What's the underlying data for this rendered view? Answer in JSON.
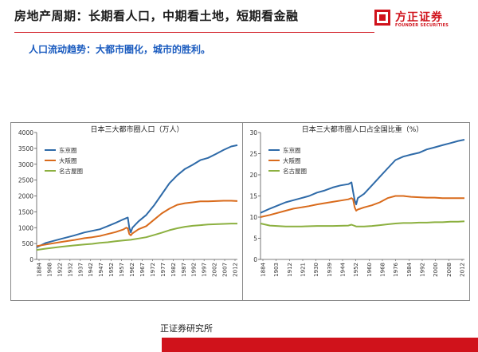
{
  "header": {
    "title": "房地产周期：长期看人口，中期看土地，短期看金融",
    "logo_cn": "方正证券",
    "logo_en": "FOUNDER SECURITIES"
  },
  "subtitle": "人口流动趋势：大都市圈化，城市的胜利。",
  "footer": {
    "text": "正证券研究所"
  },
  "colors": {
    "accent": "#d0121b",
    "subtitle": "#1a5bbf",
    "tokyo": "#2e6aa8",
    "osaka": "#d96b1c",
    "nagoya": "#8cb040"
  },
  "chart_data": [
    {
      "type": "line",
      "title": "日本三大都市圈人口（万人）",
      "xlim": [
        1884,
        2014
      ],
      "ylim": [
        0,
        4000
      ],
      "yticks": [
        0,
        500,
        1000,
        1500,
        2000,
        2500,
        3000,
        3500,
        4000
      ],
      "xtick_labels": [
        "1884",
        "1908",
        "1922",
        "1932",
        "1937",
        "1942",
        "1947",
        "1952",
        "1957",
        "1962",
        "1967",
        "1972",
        "1977",
        "1982",
        "1987",
        "1992",
        "1997",
        "2002",
        "2007",
        "2012"
      ],
      "legend_position": "top-left",
      "grid": false,
      "series": [
        {
          "name": "东京圈",
          "color": "#2e6aa8",
          "x": [
            1884,
            1890,
            1900,
            1908,
            1915,
            1920,
            1925,
            1930,
            1935,
            1940,
            1942,
            1943,
            1944,
            1945,
            1946,
            1950,
            1955,
            1960,
            1965,
            1970,
            1975,
            1980,
            1985,
            1990,
            1995,
            2000,
            2005,
            2010,
            2014
          ],
          "y": [
            380,
            520,
            650,
            750,
            850,
            900,
            950,
            1050,
            1150,
            1260,
            1300,
            1320,
            1000,
            850,
            1000,
            1200,
            1400,
            1700,
            2050,
            2400,
            2650,
            2850,
            2980,
            3130,
            3200,
            3320,
            3450,
            3560,
            3600
          ]
        },
        {
          "name": "大阪圈",
          "color": "#d96b1c",
          "x": [
            1884,
            1890,
            1900,
            1908,
            1915,
            1920,
            1925,
            1930,
            1935,
            1940,
            1942,
            1943,
            1944,
            1945,
            1946,
            1950,
            1955,
            1960,
            1965,
            1970,
            1975,
            1980,
            1985,
            1990,
            1995,
            2000,
            2005,
            2010,
            2014
          ],
          "y": [
            420,
            470,
            550,
            610,
            670,
            700,
            740,
            800,
            860,
            940,
            1000,
            980,
            800,
            760,
            820,
            950,
            1050,
            1250,
            1450,
            1600,
            1720,
            1770,
            1800,
            1830,
            1830,
            1840,
            1850,
            1850,
            1840
          ]
        },
        {
          "name": "名古屋圈",
          "color": "#8cb040",
          "x": [
            1884,
            1890,
            1900,
            1908,
            1915,
            1920,
            1925,
            1930,
            1935,
            1940,
            1945,
            1950,
            1955,
            1960,
            1965,
            1970,
            1975,
            1980,
            1985,
            1990,
            1995,
            2000,
            2005,
            2010,
            2014
          ],
          "y": [
            300,
            340,
            400,
            440,
            470,
            490,
            520,
            540,
            570,
            600,
            620,
            660,
            700,
            770,
            840,
            920,
            980,
            1030,
            1060,
            1080,
            1100,
            1110,
            1120,
            1130,
            1130
          ]
        }
      ]
    },
    {
      "type": "line",
      "title": "日本三大都市圈人口占全国比重（%）",
      "xlim": [
        1884,
        2014
      ],
      "ylim": [
        0,
        30
      ],
      "yticks": [
        0,
        5,
        10,
        15,
        20,
        25,
        30
      ],
      "xtick_labels": [
        "1884",
        "1903",
        "1912",
        "1921",
        "1930",
        "1939",
        "1944",
        "1952",
        "1960",
        "1968",
        "1976",
        "1984",
        "1992",
        "2000",
        "2008",
        "2012"
      ],
      "legend_position": "top-left",
      "grid": false,
      "series": [
        {
          "name": "东京圈",
          "color": "#2e6aa8",
          "x": [
            1884,
            1890,
            1900,
            1905,
            1910,
            1915,
            1920,
            1925,
            1930,
            1935,
            1940,
            1942,
            1943,
            1944,
            1945,
            1946,
            1950,
            1955,
            1960,
            1965,
            1970,
            1975,
            1980,
            1985,
            1990,
            1995,
            2000,
            2005,
            2010,
            2014
          ],
          "y": [
            11,
            12,
            13.5,
            14,
            14.5,
            15,
            15.8,
            16.3,
            17,
            17.5,
            17.8,
            18.2,
            16,
            14,
            13,
            14.5,
            15.5,
            17.5,
            19.5,
            21.5,
            23.5,
            24.3,
            24.8,
            25.2,
            26,
            26.5,
            27,
            27.5,
            28,
            28.3
          ]
        },
        {
          "name": "大阪圈",
          "color": "#d96b1c",
          "x": [
            1884,
            1890,
            1900,
            1905,
            1910,
            1915,
            1920,
            1925,
            1930,
            1935,
            1940,
            1942,
            1943,
            1944,
            1945,
            1946,
            1950,
            1955,
            1960,
            1965,
            1970,
            1975,
            1980,
            1985,
            1990,
            1995,
            2000,
            2005,
            2010,
            2014
          ],
          "y": [
            10,
            10.5,
            11.5,
            12,
            12.3,
            12.6,
            13,
            13.3,
            13.6,
            13.9,
            14.2,
            14.5,
            14.2,
            12.3,
            11.5,
            11.8,
            12.3,
            12.8,
            13.5,
            14.5,
            15,
            15,
            14.8,
            14.7,
            14.6,
            14.6,
            14.5,
            14.5,
            14.5,
            14.5
          ]
        },
        {
          "name": "名古屋圈",
          "color": "#8cb040",
          "x": [
            1884,
            1890,
            1900,
            1910,
            1920,
            1930,
            1940,
            1942,
            1945,
            1950,
            1955,
            1960,
            1965,
            1970,
            1975,
            1980,
            1985,
            1990,
            1995,
            2000,
            2005,
            2010,
            2014
          ],
          "y": [
            8.5,
            8,
            7.8,
            7.8,
            7.9,
            7.9,
            8,
            8.2,
            7.8,
            7.8,
            7.9,
            8.1,
            8.3,
            8.5,
            8.6,
            8.6,
            8.7,
            8.7,
            8.8,
            8.8,
            8.9,
            8.9,
            9
          ]
        }
      ]
    }
  ]
}
